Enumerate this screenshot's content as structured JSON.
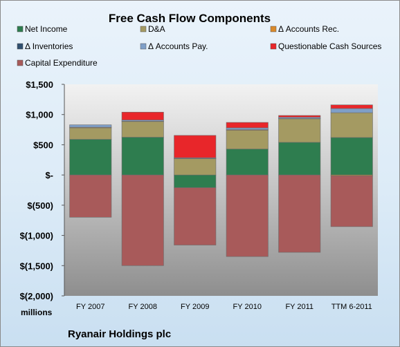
{
  "chart_data": {
    "type": "bar",
    "stacked": true,
    "title": "Free Cash Flow Components",
    "units_label": "millions",
    "company": "Ryanair Holdings plc",
    "categories": [
      "FY 2007",
      "FY 2008",
      "FY 2009",
      "FY 2010",
      "FY 2011",
      "TTM 6-2011"
    ],
    "ylim": [
      -2000,
      1500
    ],
    "yticks": [
      1500,
      1000,
      500,
      0,
      -500,
      -1000,
      -1500,
      -2000
    ],
    "ytick_labels": [
      "$1,500",
      "$1,000",
      "$500",
      "$-",
      "$(500)",
      "$(1,000)",
      "$(1,500)",
      "$(2,000)"
    ],
    "series": [
      {
        "name": "Net Income",
        "color": "#2e7d4f",
        "values": [
          590,
          625,
          -210,
          430,
          540,
          620
        ]
      },
      {
        "name": "D&A",
        "color": "#a49a62",
        "values": [
          190,
          260,
          270,
          310,
          390,
          410
        ]
      },
      {
        "name": "Δ Accounts Rec.",
        "color": "#d98a2b",
        "values": [
          10,
          5,
          5,
          10,
          5,
          -15
        ]
      },
      {
        "name": "Δ Inventories",
        "color": "#2f4f6f",
        "values": [
          0,
          0,
          0,
          0,
          0,
          0
        ]
      },
      {
        "name": "Δ Accounts Pay.",
        "color": "#7f9fc8",
        "values": [
          40,
          20,
          10,
          30,
          20,
          70
        ]
      },
      {
        "name": "Questionable Cash Sources",
        "color": "#e8262a",
        "values": [
          0,
          130,
          370,
          90,
          30,
          60
        ]
      },
      {
        "name": "Capital Expenditure",
        "color": "#a85a5a",
        "values": [
          -700,
          -1500,
          -950,
          -1350,
          -1280,
          -840
        ]
      }
    ],
    "legend_position": "top",
    "grid": false
  }
}
